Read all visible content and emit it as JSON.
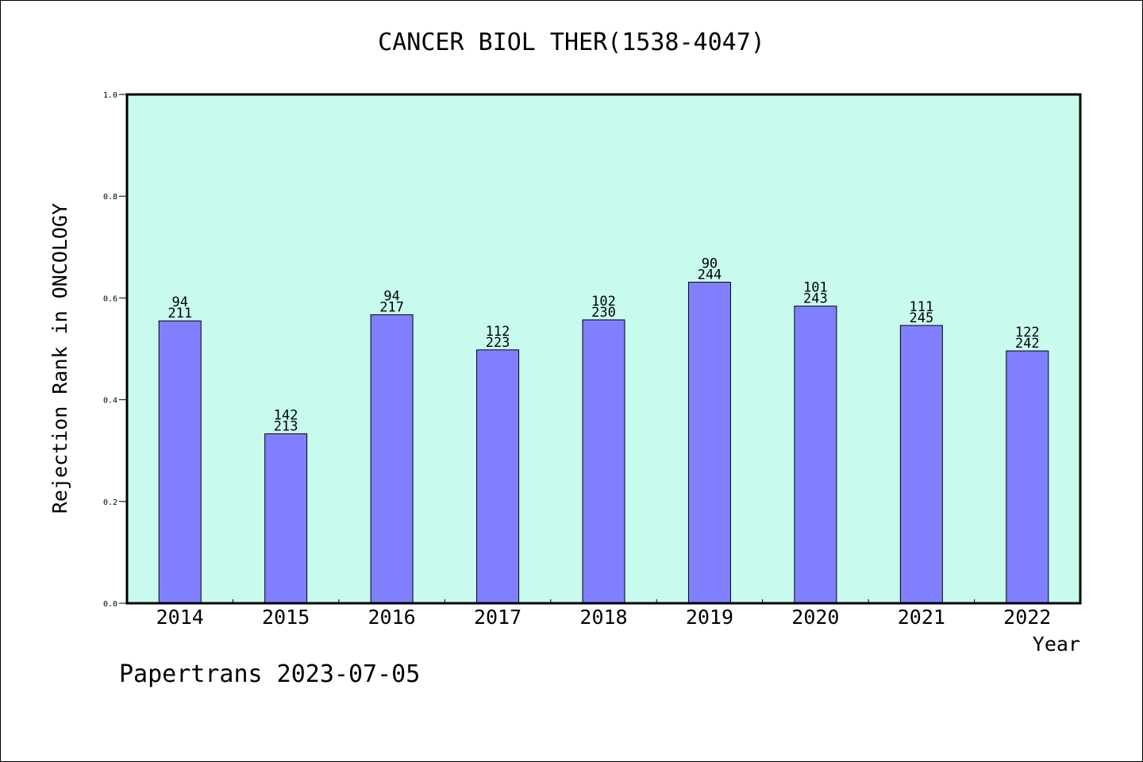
{
  "chart_data": {
    "type": "bar",
    "title": "CANCER BIOL THER(1538-4047)",
    "xlabel": "Year",
    "ylabel": "Rejection Rank in ONCOLOGY",
    "ylim": [
      0,
      1
    ],
    "yticks": [
      "0.0",
      "0.2",
      "0.4",
      "0.6",
      "0.8",
      "1.0"
    ],
    "categories": [
      "2014",
      "2015",
      "2016",
      "2017",
      "2018",
      "2019",
      "2020",
      "2021",
      "2022"
    ],
    "values": [
      0.555,
      0.333,
      0.567,
      0.498,
      0.557,
      0.631,
      0.584,
      0.546,
      0.496
    ],
    "labels_top": [
      "94",
      "142",
      "94",
      "112",
      "102",
      "90",
      "101",
      "111",
      "122"
    ],
    "labels_bottom": [
      "211",
      "213",
      "217",
      "223",
      "230",
      "244",
      "243",
      "245",
      "242"
    ],
    "grid": false,
    "colors": {
      "plot_background": "#c8fbee",
      "bar_fill": "#8080ff",
      "bar_stroke": "#000000"
    }
  },
  "footer": {
    "text": "Papertrans 2023-07-05"
  }
}
